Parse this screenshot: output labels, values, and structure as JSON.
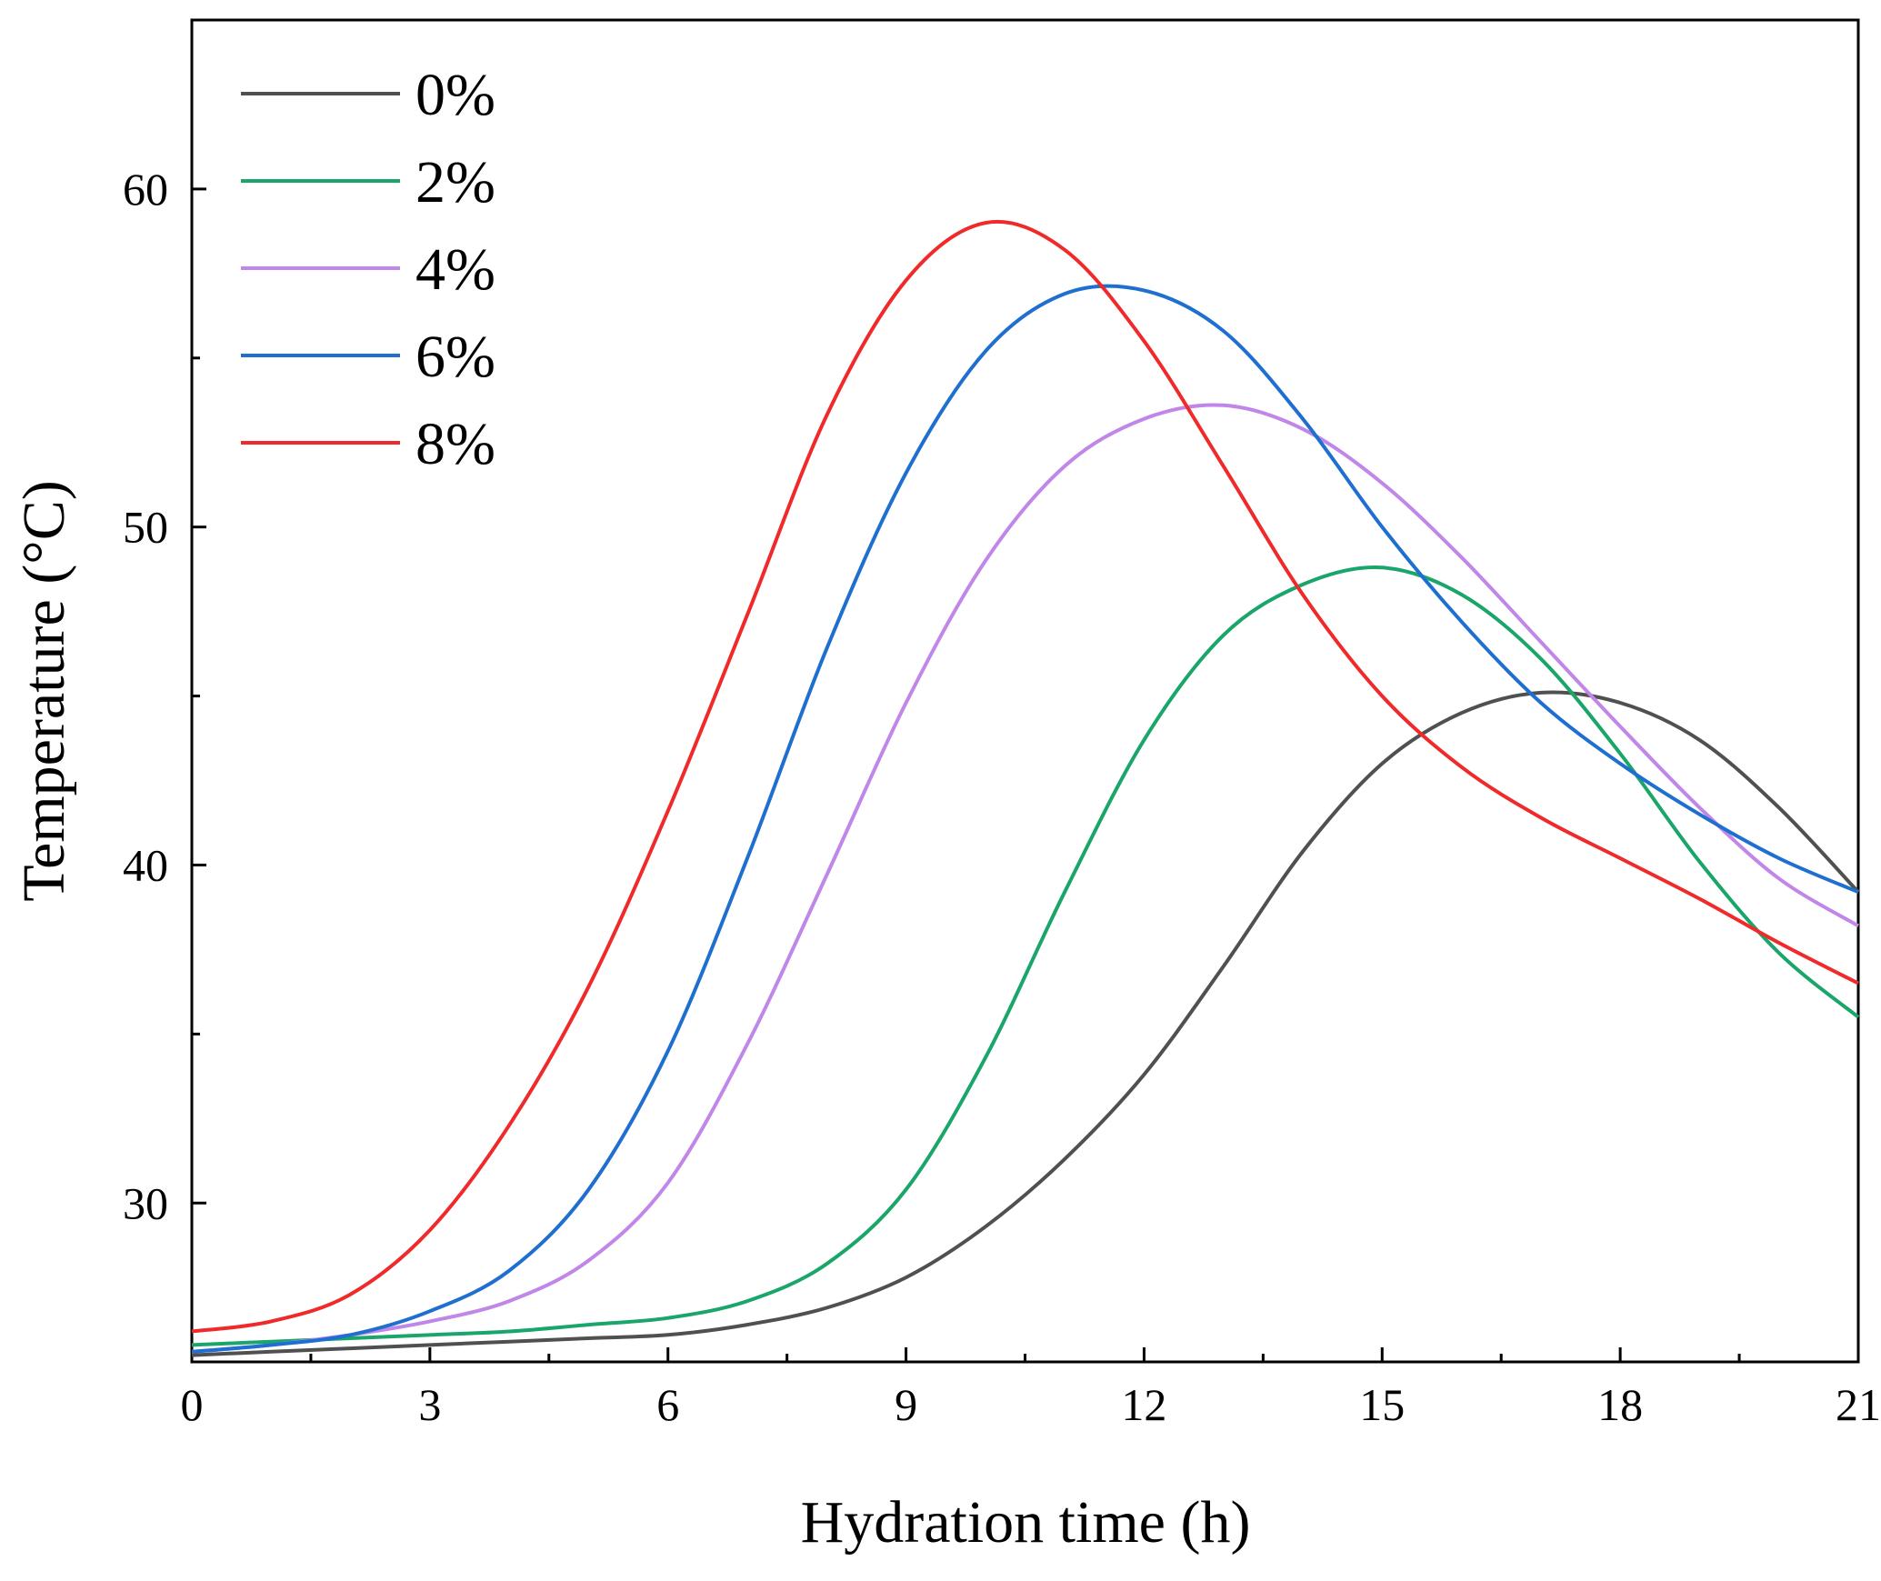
{
  "chart_data": {
    "type": "line",
    "title": "",
    "xlabel": "Hydration time (h)",
    "ylabel": "Temperature (°C)",
    "xlim": [
      0,
      21
    ],
    "ylim": [
      25.3,
      65
    ],
    "x_ticks": [
      0,
      3,
      6,
      9,
      12,
      15,
      18,
      21
    ],
    "y_ticks": [
      30,
      40,
      50,
      60
    ],
    "x_minor_step": 1.5,
    "y_minor_step": 5,
    "legend_position": "top-left",
    "series": [
      {
        "name": "0%",
        "color": "#505050",
        "points": [
          [
            0,
            25.5
          ],
          [
            1,
            25.6
          ],
          [
            2,
            25.7
          ],
          [
            3,
            25.8
          ],
          [
            4,
            25.9
          ],
          [
            5,
            26
          ],
          [
            6,
            26.1
          ],
          [
            7,
            26.4
          ],
          [
            8,
            26.9
          ],
          [
            9,
            27.8
          ],
          [
            10,
            29.3
          ],
          [
            11,
            31.3
          ],
          [
            12,
            33.8
          ],
          [
            13,
            37
          ],
          [
            14,
            40.4
          ],
          [
            15,
            43
          ],
          [
            16,
            44.5
          ],
          [
            17,
            45.1
          ],
          [
            18,
            44.8
          ],
          [
            19,
            43.7
          ],
          [
            20,
            41.7
          ],
          [
            21,
            39.2
          ]
        ]
      },
      {
        "name": "2%",
        "color": "#1aa66a",
        "points": [
          [
            0,
            25.8
          ],
          [
            1,
            25.9
          ],
          [
            2,
            26
          ],
          [
            3,
            26.1
          ],
          [
            4,
            26.2
          ],
          [
            5,
            26.4
          ],
          [
            6,
            26.6
          ],
          [
            7,
            27.1
          ],
          [
            8,
            28.2
          ],
          [
            9,
            30.4
          ],
          [
            10,
            34.3
          ],
          [
            11,
            39.2
          ],
          [
            12,
            43.7
          ],
          [
            13,
            46.8
          ],
          [
            14,
            48.3
          ],
          [
            15,
            48.8
          ],
          [
            16,
            48
          ],
          [
            17,
            46.1
          ],
          [
            18,
            43.3
          ],
          [
            19,
            40.1
          ],
          [
            20,
            37.4
          ],
          [
            21,
            35.5
          ]
        ]
      },
      {
        "name": "4%",
        "color": "#c086e8",
        "points": [
          [
            0,
            25.6
          ],
          [
            1,
            25.8
          ],
          [
            2,
            26.1
          ],
          [
            3,
            26.5
          ],
          [
            4,
            27.1
          ],
          [
            5,
            28.3
          ],
          [
            6,
            30.6
          ],
          [
            7,
            34.7
          ],
          [
            8,
            39.7
          ],
          [
            9,
            44.8
          ],
          [
            10,
            49
          ],
          [
            11,
            51.8
          ],
          [
            12,
            53.2
          ],
          [
            13,
            53.6
          ],
          [
            14,
            52.9
          ],
          [
            15,
            51.3
          ],
          [
            16,
            49.1
          ],
          [
            17,
            46.6
          ],
          [
            18,
            44.1
          ],
          [
            19,
            41.7
          ],
          [
            20,
            39.6
          ],
          [
            21,
            38.2
          ]
        ]
      },
      {
        "name": "6%",
        "color": "#1e6fd0",
        "points": [
          [
            0,
            25.6
          ],
          [
            1,
            25.8
          ],
          [
            2,
            26.1
          ],
          [
            3,
            26.8
          ],
          [
            4,
            28
          ],
          [
            5,
            30.4
          ],
          [
            6,
            34.5
          ],
          [
            7,
            40.2
          ],
          [
            8,
            46.4
          ],
          [
            9,
            51.6
          ],
          [
            10,
            55.2
          ],
          [
            11,
            56.9
          ],
          [
            12,
            57
          ],
          [
            13,
            55.8
          ],
          [
            14,
            53.2
          ],
          [
            15,
            50
          ],
          [
            16,
            47.2
          ],
          [
            17,
            44.8
          ],
          [
            18,
            43
          ],
          [
            19,
            41.5
          ],
          [
            20,
            40.2
          ],
          [
            21,
            39.2
          ]
        ]
      },
      {
        "name": "8%",
        "color": "#f02a2a",
        "points": [
          [
            0,
            26.2
          ],
          [
            1,
            26.5
          ],
          [
            2,
            27.3
          ],
          [
            3,
            29.2
          ],
          [
            4,
            32.3
          ],
          [
            5,
            36.4
          ],
          [
            6,
            41.6
          ],
          [
            7,
            47.4
          ],
          [
            8,
            53.3
          ],
          [
            9,
            57.3
          ],
          [
            10,
            59
          ],
          [
            11,
            58.2
          ],
          [
            12,
            55.5
          ],
          [
            13,
            51.8
          ],
          [
            14,
            48
          ],
          [
            15,
            45
          ],
          [
            16,
            42.9
          ],
          [
            17,
            41.4
          ],
          [
            18,
            40.2
          ],
          [
            19,
            39
          ],
          [
            20,
            37.7
          ],
          [
            21,
            36.5
          ]
        ]
      }
    ]
  }
}
